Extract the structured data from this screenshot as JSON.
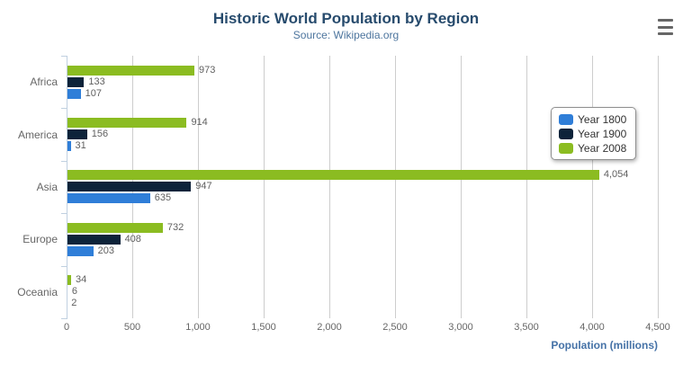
{
  "header": {
    "title": "Historic World Population by Region",
    "subtitle": "Source: Wikipedia.org"
  },
  "chart_data": {
    "type": "bar",
    "title": "Historic World Population by Region",
    "subtitle": "Source: Wikipedia.org",
    "categories": [
      "Africa",
      "America",
      "Asia",
      "Europe",
      "Oceania"
    ],
    "series": [
      {
        "name": "Year 1800",
        "color": "#2f7ed8",
        "values": [
          107,
          31,
          635,
          203,
          2
        ]
      },
      {
        "name": "Year 1900",
        "color": "#0d233a",
        "values": [
          133,
          156,
          947,
          408,
          6
        ]
      },
      {
        "name": "Year 2008",
        "color": "#8bbc21",
        "values": [
          973,
          914,
          4054,
          732,
          34
        ]
      }
    ],
    "series_display_order_top_to_bottom": [
      "Year 2008",
      "Year 1900",
      "Year 1800"
    ],
    "xlabel": "Population (millions)",
    "ylabel": "",
    "xlim": [
      0,
      4500
    ],
    "x_ticks": [
      "0",
      "500",
      "1,000",
      "1,500",
      "2,000",
      "2,500",
      "3,000",
      "3,500",
      "4,000",
      "4,500"
    ],
    "grid": true,
    "legend_position": "right",
    "data_labels_visible": true
  },
  "colors": {
    "title": "#274b6d",
    "subtitle": "#4d759e",
    "axis_title": "#4572A7",
    "axis_line": "#C0D0E0",
    "gridline": "#cdcdcd",
    "data_label": "#606060",
    "category_label": "#666666",
    "legend_border": "#909090",
    "menu_icon": "#666666"
  }
}
